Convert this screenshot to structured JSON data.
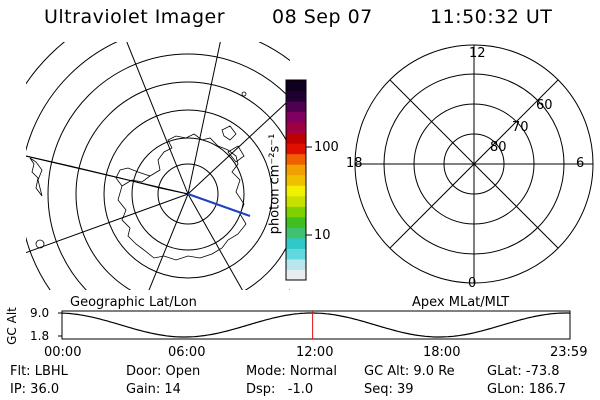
{
  "header": {
    "title": "Ultraviolet Imager",
    "date": "08 Sep 07",
    "time": "11:50:32 UT"
  },
  "colorbar": {
    "unit_label": "photon cm⁻²s⁻¹",
    "tick_100": "100",
    "tick_10": "10",
    "colors": [
      "#e8eef0",
      "#b8e6ec",
      "#60d8e0",
      "#30c8c8",
      "#40c070",
      "#40c020",
      "#80d000",
      "#c8e000",
      "#f0f000",
      "#f0c000",
      "#f0a000",
      "#f06000",
      "#e01000",
      "#c00000",
      "#a00040",
      "#800060",
      "#500050",
      "#200030",
      "#100020"
    ]
  },
  "polar_plot": {
    "mlt_12": "12",
    "mlt_18": "18",
    "mlt_6": "6",
    "mlt_0": "0",
    "lat_60": "60",
    "lat_70": "70",
    "lat_80": "80"
  },
  "map_labels": {
    "left": "Geographic Lat/Lon",
    "right": "Apex MLat/MLT"
  },
  "timeline": {
    "axis_label": "GC Alt",
    "y_max": "9.0",
    "y_min": "1.8",
    "ticks": [
      "00:00",
      "06:00",
      "12:00",
      "18:00",
      "23:59"
    ],
    "current_time_hours": 11.84
  },
  "footer": {
    "flt": "Flt: LBHL",
    "ip": "IP: 36.0",
    "door": "Door: Open",
    "gain": "Gain: 14",
    "mode": "Mode: Normal",
    "dsp": "Dsp:   -1.0",
    "gc_alt": "GC Alt: 9.0 Re",
    "seq": "Seq: 39",
    "glat": "GLat: -73.8",
    "glon": "GLon: 186.7"
  }
}
